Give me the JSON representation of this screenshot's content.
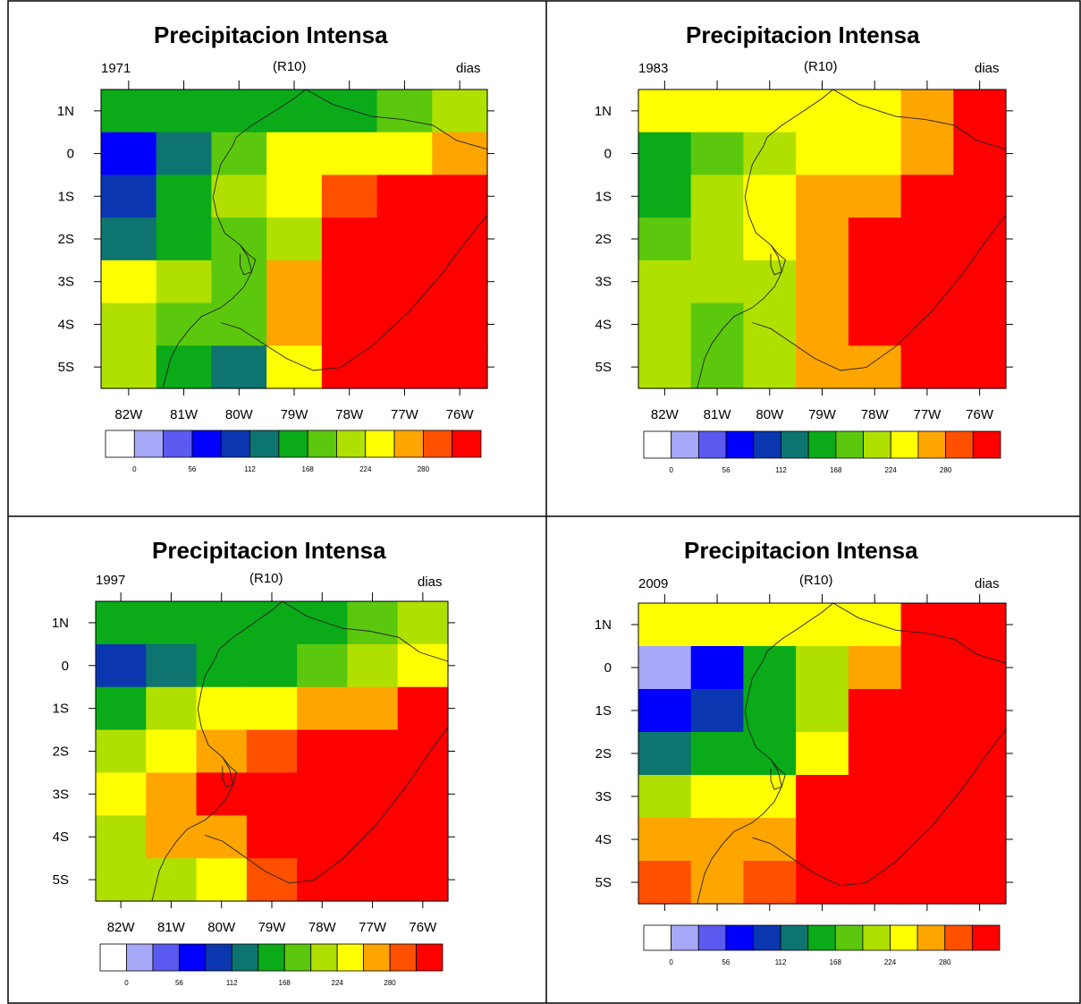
{
  "colors": {
    "bins": [
      "#ffffff",
      "#a8a8f8",
      "#5a5af0",
      "#0000ff",
      "#0a37b0",
      "#0d7470",
      "#0aaa18",
      "#5bc80e",
      "#b0e000",
      "#ffff00",
      "#ffa500",
      "#ff5000",
      "#ff0000"
    ]
  },
  "legend_ticks": [
    "0",
    "56",
    "112",
    "168",
    "224",
    "280"
  ],
  "lat_labels": [
    "1N",
    "0",
    "1S",
    "2S",
    "3S",
    "4S",
    "5S"
  ],
  "lon_labels": [
    "82W",
    "81W",
    "80W",
    "79W",
    "78W",
    "77W",
    "76W"
  ],
  "panels": [
    {
      "title": "Precipitacion Intensa",
      "year": "1971",
      "index": "(R10)",
      "units": "dias",
      "grid": [
        [
          6,
          6,
          6,
          6,
          6,
          7,
          8
        ],
        [
          3,
          5,
          7,
          9,
          9,
          9,
          10
        ],
        [
          4,
          6,
          8,
          9,
          11,
          12,
          12
        ],
        [
          5,
          6,
          7,
          8,
          12,
          12,
          12
        ],
        [
          9,
          8,
          7,
          10,
          12,
          12,
          12
        ],
        [
          8,
          7,
          7,
          10,
          12,
          12,
          12
        ],
        [
          8,
          6,
          5,
          9,
          12,
          12,
          12
        ]
      ]
    },
    {
      "title": "Precipitacion Intensa",
      "year": "1983",
      "index": "(R10)",
      "units": "dias",
      "grid": [
        [
          9,
          9,
          9,
          9,
          9,
          10,
          12
        ],
        [
          6,
          7,
          8,
          9,
          9,
          10,
          12
        ],
        [
          6,
          8,
          9,
          10,
          10,
          12,
          12
        ],
        [
          7,
          8,
          9,
          10,
          12,
          12,
          12
        ],
        [
          8,
          8,
          8,
          10,
          12,
          12,
          12
        ],
        [
          8,
          7,
          8,
          10,
          12,
          12,
          12
        ],
        [
          8,
          7,
          8,
          10,
          10,
          12,
          12
        ]
      ]
    },
    {
      "title": "Precipitacion Intensa",
      "year": "1997",
      "index": "(R10)",
      "units": "dias",
      "grid": [
        [
          6,
          6,
          6,
          6,
          6,
          7,
          8
        ],
        [
          4,
          5,
          6,
          6,
          7,
          8,
          9
        ],
        [
          6,
          8,
          9,
          9,
          10,
          10,
          12
        ],
        [
          8,
          9,
          10,
          11,
          12,
          12,
          12
        ],
        [
          9,
          10,
          12,
          12,
          12,
          12,
          12
        ],
        [
          8,
          10,
          10,
          12,
          12,
          12,
          12
        ],
        [
          8,
          8,
          9,
          11,
          12,
          12,
          12
        ]
      ]
    },
    {
      "title": "Precipitacion Intensa",
      "year": "2009",
      "index": "(R10)",
      "units": "dias",
      "grid": [
        [
          9,
          9,
          9,
          9,
          9,
          12,
          12
        ],
        [
          1,
          3,
          6,
          8,
          10,
          12,
          12
        ],
        [
          3,
          4,
          6,
          8,
          12,
          12,
          12
        ],
        [
          5,
          6,
          6,
          9,
          12,
          12,
          12
        ],
        [
          8,
          9,
          9,
          12,
          12,
          12,
          12
        ],
        [
          10,
          10,
          10,
          12,
          12,
          12,
          12
        ],
        [
          11,
          10,
          11,
          12,
          12,
          12,
          12
        ]
      ]
    }
  ]
}
